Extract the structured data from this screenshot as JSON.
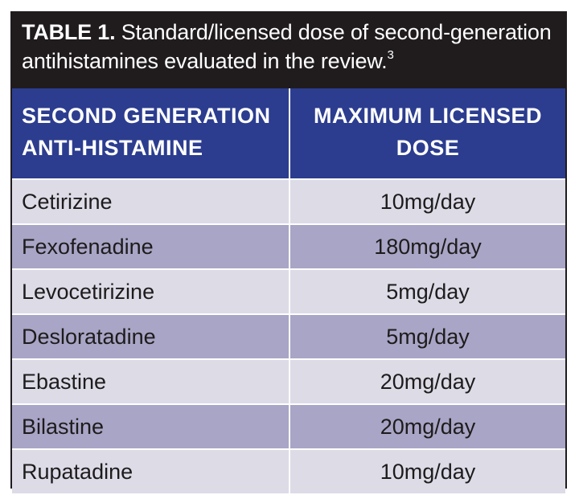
{
  "caption": {
    "label": "TABLE 1.",
    "text": "Standard/licensed dose of second-generation antihistamines evaluated in the review.",
    "ref": "3"
  },
  "header": {
    "col1": "SECOND GENERATION ANTI-HISTAMINE",
    "col2": "MAXIMUM LICENSED DOSE"
  },
  "rows": [
    {
      "drug": "Cetirizine",
      "dose": "10mg/day"
    },
    {
      "drug": "Fexofenadine",
      "dose": "180mg/day"
    },
    {
      "drug": "Levocetirizine",
      "dose": "5mg/day"
    },
    {
      "drug": "Desloratadine",
      "dose": "5mg/day"
    },
    {
      "drug": "Ebastine",
      "dose": "20mg/day"
    },
    {
      "drug": "Bilastine",
      "dose": "20mg/day"
    },
    {
      "drug": "Rupatadine",
      "dose": "10mg/day"
    }
  ],
  "colors": {
    "caption_bg": "#201c1e",
    "header_bg": "#2c3d8f",
    "row_light": "#dcdbe6",
    "row_dark": "#a8a5c6"
  }
}
